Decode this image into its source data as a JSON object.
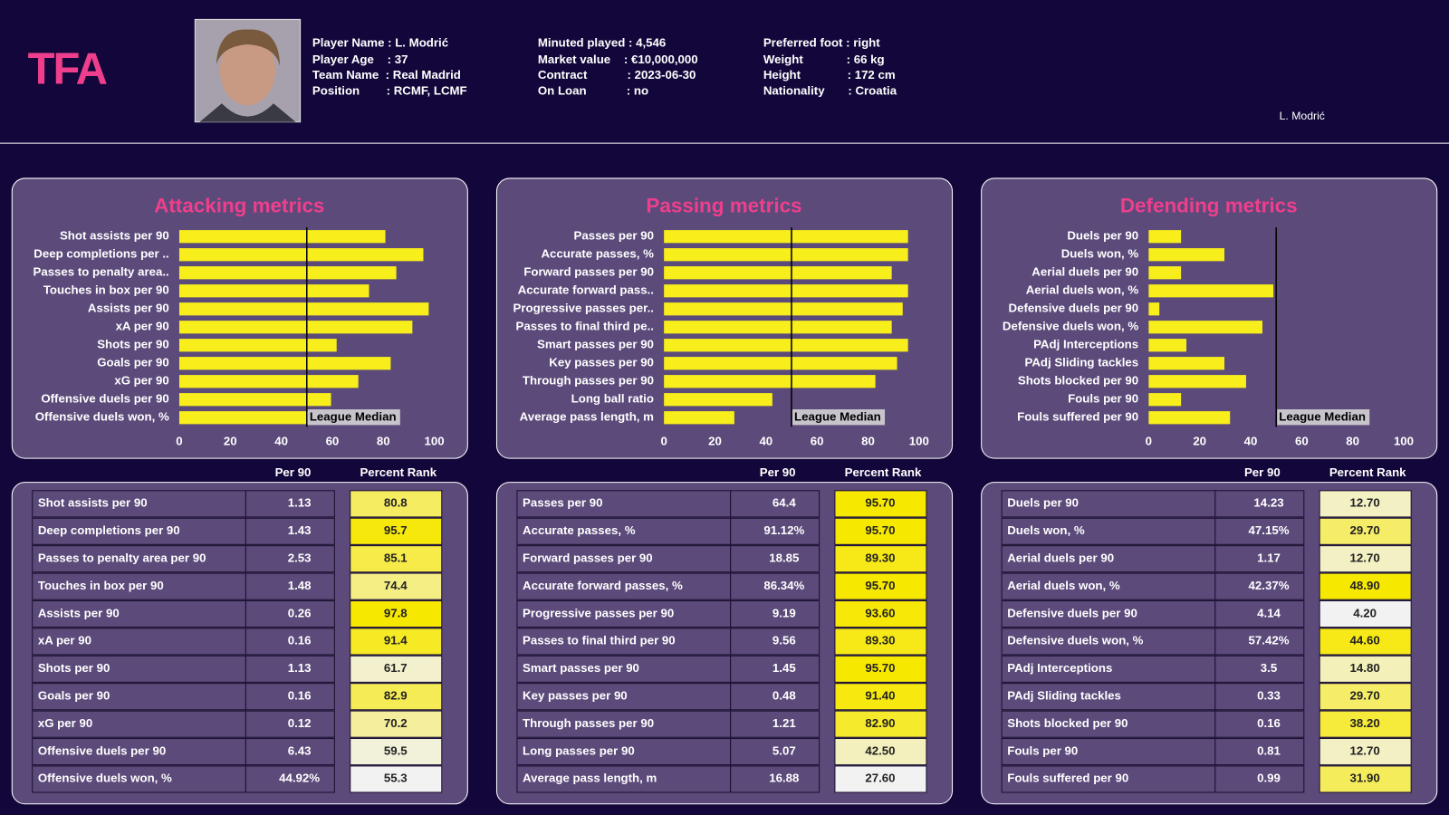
{
  "header": {
    "logo": "TFA",
    "caption": "L. Modrić",
    "info": [
      [
        "Player Name : L. Modrić",
        "Player Age    : 37",
        "Team Name  : Real Madrid",
        "Position        : RCMF, LCMF"
      ],
      [
        "Minuted played : 4,546",
        "Market value    : €10,000,000",
        "Contract            : 2023-06-30",
        "On Loan            : no"
      ],
      [
        "Preferred foot : right",
        "Weight             : 66 kg",
        "Height              : 172 cm",
        "Nationality       : Croatia"
      ]
    ]
  },
  "chart_data": [
    {
      "type": "bar",
      "orientation": "horizontal",
      "title": "Attacking metrics",
      "color": "#f7ee1b",
      "categories": [
        "Shot assists per 90",
        "Deep completions per ..",
        "Passes to penalty area..",
        "Touches in box per 90",
        "Assists per 90",
        "xA per 90",
        "Shots per 90",
        "Goals per 90",
        "xG per 90",
        "Offensive duels per 90",
        "Offensive duels won, %"
      ],
      "values": [
        80.8,
        95.7,
        85.1,
        74.4,
        97.8,
        91.4,
        61.7,
        82.9,
        70.2,
        59.5,
        55.3
      ],
      "xlim": [
        0,
        100
      ],
      "xticks": [
        0,
        20,
        40,
        60,
        80,
        100
      ],
      "median": 50,
      "median_label": "League Median"
    },
    {
      "type": "bar",
      "orientation": "horizontal",
      "title": "Passing metrics",
      "color": "#f7ee1b",
      "categories": [
        "Passes per 90",
        "Accurate passes, %",
        "Forward passes per 90",
        "Accurate forward pass..",
        "Progressive passes per..",
        "Passes to final third pe..",
        "Smart passes per 90",
        "Key passes per 90",
        "Through passes per 90",
        "Long ball ratio",
        "Average pass length, m"
      ],
      "values": [
        95.7,
        95.7,
        89.3,
        95.7,
        93.6,
        89.3,
        95.7,
        91.4,
        82.9,
        42.5,
        27.6
      ],
      "xlim": [
        0,
        100
      ],
      "xticks": [
        0,
        20,
        40,
        60,
        80,
        100
      ],
      "median": 50,
      "median_label": "League Median"
    },
    {
      "type": "bar",
      "orientation": "horizontal",
      "title": "Defending metrics",
      "color": "#f7ee1b",
      "categories": [
        "Duels per 90",
        "Duels won, %",
        "Aerial duels per 90",
        "Aerial duels won, %",
        "Defensive duels per 90",
        "Defensive duels won, %",
        "PAdj Interceptions",
        "PAdj Sliding tackles",
        "Shots blocked per 90",
        "Fouls per 90",
        "Fouls suffered per 90"
      ],
      "values": [
        12.7,
        29.7,
        12.7,
        48.9,
        4.2,
        44.6,
        14.8,
        29.7,
        38.2,
        12.7,
        31.9
      ],
      "xlim": [
        0,
        100
      ],
      "xticks": [
        0,
        20,
        40,
        60,
        80,
        100
      ],
      "median": 50,
      "median_label": "League Median"
    }
  ],
  "tables": [
    {
      "columns": [
        "Per 90",
        "Percent Rank"
      ],
      "rows": [
        [
          "Shot assists per 90",
          "1.13",
          "80.8"
        ],
        [
          "Deep completions per 90",
          "1.43",
          "95.7"
        ],
        [
          "Passes to penalty area per 90",
          "2.53",
          "85.1"
        ],
        [
          "Touches in box per 90",
          "1.48",
          "74.4"
        ],
        [
          "Assists per 90",
          "0.26",
          "97.8"
        ],
        [
          "xA per 90",
          "0.16",
          "91.4"
        ],
        [
          "Shots per 90",
          "1.13",
          "61.7"
        ],
        [
          "Goals per 90",
          "0.16",
          "82.9"
        ],
        [
          "xG per 90",
          "0.12",
          "70.2"
        ],
        [
          "Offensive duels per 90",
          "6.43",
          "59.5"
        ],
        [
          "Offensive duels won, %",
          "44.92%",
          "55.3"
        ]
      ]
    },
    {
      "columns": [
        "Per 90",
        "Percent Rank"
      ],
      "rows": [
        [
          "Passes per 90",
          "64.4",
          "95.70"
        ],
        [
          "Accurate passes, %",
          "91.12%",
          "95.70"
        ],
        [
          "Forward passes per 90",
          "18.85",
          "89.30"
        ],
        [
          "Accurate forward passes, %",
          "86.34%",
          "95.70"
        ],
        [
          "Progressive passes per 90",
          "9.19",
          "93.60"
        ],
        [
          "Passes to final third per 90",
          "9.56",
          "89.30"
        ],
        [
          "Smart passes per 90",
          "1.45",
          "95.70"
        ],
        [
          "Key passes per 90",
          "0.48",
          "91.40"
        ],
        [
          "Through passes per 90",
          "1.21",
          "82.90"
        ],
        [
          "Long passes per 90",
          "5.07",
          "42.50"
        ],
        [
          "Average pass length, m",
          "16.88",
          "27.60"
        ]
      ]
    },
    {
      "columns": [
        "Per 90",
        "Percent Rank"
      ],
      "rows": [
        [
          "Duels per 90",
          "14.23",
          "12.70"
        ],
        [
          "Duels won, %",
          "47.15%",
          "29.70"
        ],
        [
          "Aerial duels per 90",
          "1.17",
          "12.70"
        ],
        [
          "Aerial duels won, %",
          "42.37%",
          "48.90"
        ],
        [
          "Defensive duels per 90",
          "4.14",
          "4.20"
        ],
        [
          "Defensive duels won, %",
          "57.42%",
          "44.60"
        ],
        [
          "PAdj Interceptions",
          "3.5",
          "14.80"
        ],
        [
          "PAdj Sliding tackles",
          "0.33",
          "29.70"
        ],
        [
          "Shots blocked per 90",
          "0.16",
          "38.20"
        ],
        [
          "Fouls per 90",
          "0.81",
          "12.70"
        ],
        [
          "Fouls suffered per 90",
          "0.99",
          "31.90"
        ]
      ]
    }
  ]
}
